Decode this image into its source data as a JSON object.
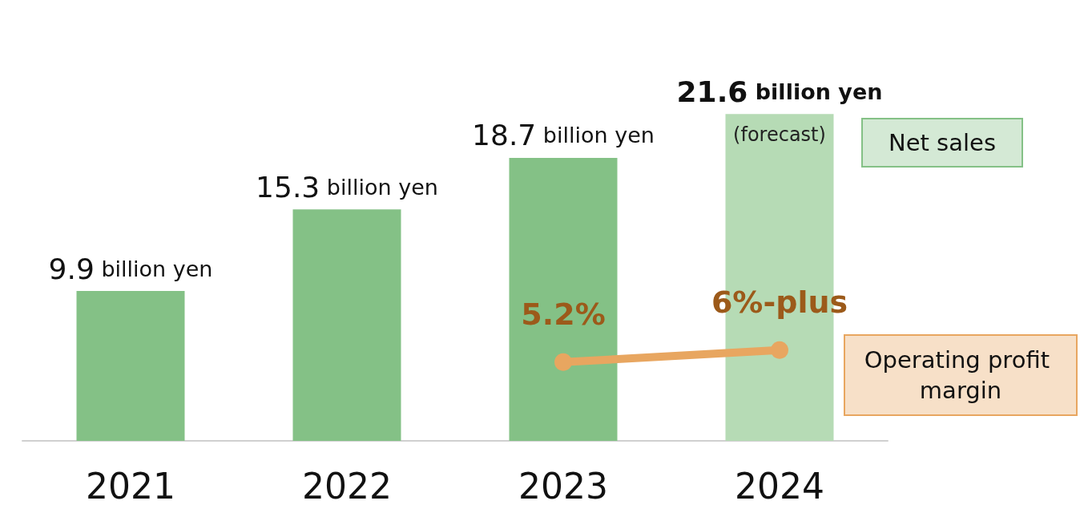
{
  "chart_data": {
    "type": "bar",
    "categories": [
      "2021",
      "2022",
      "2023",
      "2024"
    ],
    "series": [
      {
        "name": "Net sales",
        "colors": [
          "#84c186",
          "#84c186",
          "#84c186",
          "#b6dbb5"
        ],
        "color": "#84c186",
        "values": [
          9.9,
          15.3,
          18.7,
          21.6
        ],
        "value_labels": [
          "9.9 billion yen",
          "15.3 billion yen",
          "18.7 billion yen",
          "21.6 billion yen"
        ]
      },
      {
        "name": "Operating profit margin",
        "type": "line",
        "color": "#e8a660",
        "values": [
          null,
          null,
          5.2,
          6
        ],
        "value_labels": [
          null,
          null,
          "5.2%",
          "6%-plus"
        ]
      }
    ],
    "annotations": [
      {
        "text": "(forecast)",
        "x": "2024",
        "y": 21.6
      }
    ],
    "legend": "right",
    "grid": false,
    "marker": "circle"
  }
}
